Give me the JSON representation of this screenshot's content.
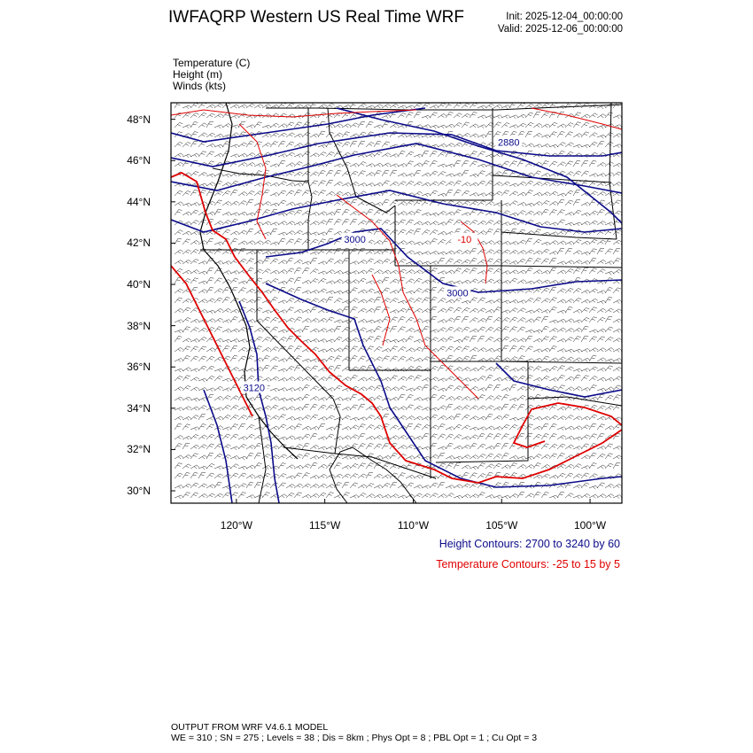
{
  "header": {
    "title": "IWFAQRP Western US Real Time WRF",
    "init": "Init: 2025-12-04_00:00:00",
    "valid": "Valid: 2025-12-06_00:00:00"
  },
  "variables": [
    "Temperature   (C)",
    "Height   (m)",
    "Winds   (kts)"
  ],
  "map": {
    "lat_ticks": [
      {
        "value": 48,
        "label": "48°N"
      },
      {
        "value": 46,
        "label": "46°N"
      },
      {
        "value": 44,
        "label": "44°N"
      },
      {
        "value": 42,
        "label": "42°N"
      },
      {
        "value": 40,
        "label": "40°N"
      },
      {
        "value": 38,
        "label": "38°N"
      },
      {
        "value": 36,
        "label": "36°N"
      },
      {
        "value": 34,
        "label": "34°N"
      },
      {
        "value": 32,
        "label": "32°N"
      },
      {
        "value": 30,
        "label": "30°N"
      }
    ],
    "lon_ticks": [
      {
        "value": -120,
        "label": "120°W"
      },
      {
        "value": -115,
        "label": "115°W"
      },
      {
        "value": -110,
        "label": "110°W"
      },
      {
        "value": -105,
        "label": "105°W"
      },
      {
        "value": -100,
        "label": "100°W"
      }
    ],
    "lon_range": [
      -123.7,
      -98.2
    ],
    "lat_range": [
      29.4,
      48.8
    ],
    "contour_labels": [
      {
        "text": "2880",
        "lon": -104.6,
        "lat": 46.9,
        "color": "#0b0b8a"
      },
      {
        "text": "3000",
        "lon": -113.3,
        "lat": 42.2,
        "color": "#0b0b8a"
      },
      {
        "text": "3000",
        "lon": -107.5,
        "lat": 39.6,
        "color": "#0b0b8a"
      },
      {
        "text": "3120",
        "lon": -119.0,
        "lat": 35.0,
        "color": "#0b0b8a"
      },
      {
        "text": "-10",
        "lon": -107.1,
        "lat": 42.2,
        "color": "#e00000"
      }
    ],
    "colors": {
      "height": "#0b0b8a",
      "temperature": "#e00000",
      "border": "#000000"
    }
  },
  "legend": {
    "height": "Height Contours: 2700 to 3240 by 60",
    "temperature": "Temperature Contours: -25 to 15 by 5"
  },
  "footer": {
    "line1": "OUTPUT FROM WRF V4.6.1 MODEL",
    "line2": "WE = 310 ; SN = 275 ; Levels = 38 ; Dis = 8km ; Phys Opt = 8 ; PBL Opt = 1 ; Cu Opt = 3"
  }
}
